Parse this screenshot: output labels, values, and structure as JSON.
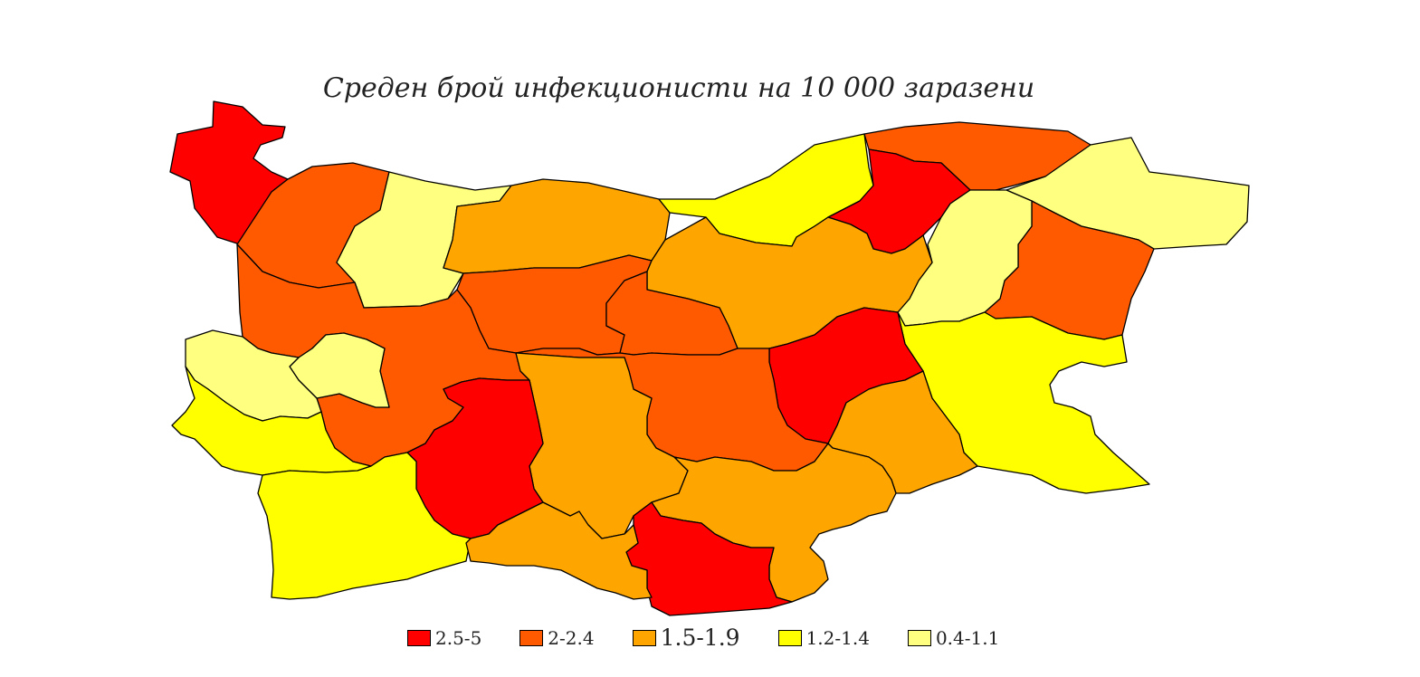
{
  "title": "Среден брой инфекционисти на 10 000 заразени",
  "legend": [
    {
      "label": "2.5-5",
      "color": "#ff0000"
    },
    {
      "label": "2-2.4",
      "color": "#ff5a00"
    },
    {
      "label": "1.5-1.9",
      "color": "#ffa500"
    },
    {
      "label": "1.2-1.4",
      "color": "#ffff00"
    },
    {
      "label": "0.4-1.1",
      "color": "#ffff80"
    }
  ],
  "regions": [
    {
      "class": 0
    },
    {
      "class": 1
    },
    {
      "class": 4
    },
    {
      "class": 2
    },
    {
      "class": 3
    },
    {
      "class": 1
    },
    {
      "class": 0
    },
    {
      "class": 4
    },
    {
      "class": 1
    },
    {
      "class": 4
    },
    {
      "class": 1
    },
    {
      "class": 2
    },
    {
      "class": 1
    },
    {
      "class": 3
    },
    {
      "class": 1
    },
    {
      "class": 0
    },
    {
      "class": 4
    },
    {
      "class": 4
    },
    {
      "class": 1
    },
    {
      "class": 3
    },
    {
      "class": 2
    },
    {
      "class": 0
    },
    {
      "class": 2
    },
    {
      "class": 3
    },
    {
      "class": 2
    },
    {
      "class": 0
    },
    {
      "class": 2
    },
    {
      "class": 3
    }
  ]
}
